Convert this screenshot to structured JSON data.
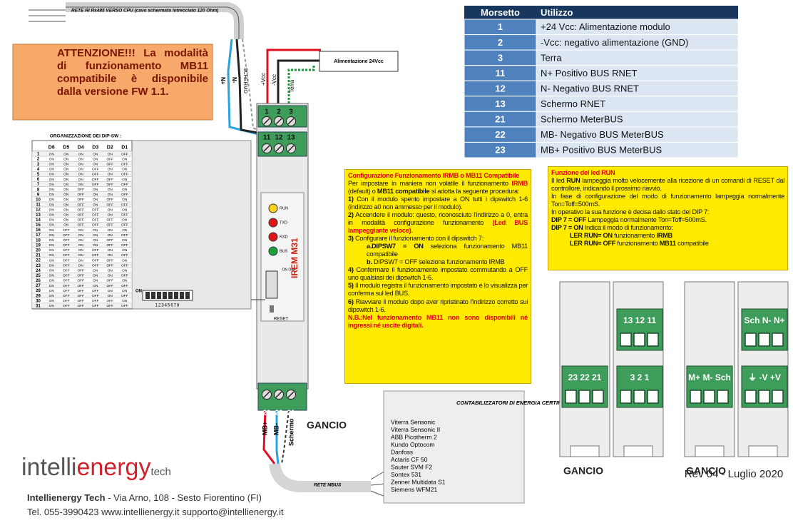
{
  "wires": {
    "rs485": "RETE RI Rs485 VERSO CPU (cavo schermato intrecciato 120 Ohm)",
    "power": "Alimentazione 24Vcc",
    "schermo": "SCHERMO",
    "n_plus": "N+",
    "n_minus": "N-",
    "vcc_plus": "+Vcc",
    "vcc_minus": "-Vcc",
    "terra": "Terra",
    "mbus": "RETE MBUS",
    "mb_plus": "MB+",
    "mb_minus": "MB-",
    "schermo2": "Schermo"
  },
  "attention": "ATTENZIONE!!! La modalità di funzionamento MB11 compatibile è disponibile dalla versione FW 1.1.",
  "device": {
    "top_terminals": [
      "1",
      "2",
      "3"
    ],
    "mid_terminals": [
      "11",
      "12",
      "13"
    ],
    "bottom_terminals": [
      "23",
      "22",
      "21"
    ],
    "leds": [
      "RUN",
      "TXD",
      "RXD",
      "BUS"
    ],
    "switch_label": "ON OFF",
    "reset": "RESET",
    "brand": "IREM M31",
    "hook": "GANCIO"
  },
  "dip": {
    "title": "ORGANIZZAZIONE DEI DIP-SW :",
    "columns": [
      "D6",
      "D5",
      "D4",
      "D3",
      "D2",
      "D1"
    ],
    "rows": [
      [
        "1",
        "ON",
        "ON",
        "ON",
        "ON",
        "ON",
        "OFF"
      ],
      [
        "2",
        "ON",
        "ON",
        "ON",
        "ON",
        "OFF",
        "ON"
      ],
      [
        "3",
        "ON",
        "ON",
        "ON",
        "ON",
        "OFF",
        "OFF"
      ],
      [
        "4",
        "ON",
        "ON",
        "ON",
        "OFF",
        "ON",
        "ON"
      ],
      [
        "5",
        "ON",
        "ON",
        "ON",
        "OFF",
        "ON",
        "OFF"
      ],
      [
        "6",
        "ON",
        "ON",
        "ON",
        "OFF",
        "OFF",
        "ON"
      ],
      [
        "7",
        "ON",
        "ON",
        "ON",
        "OFF",
        "OFF",
        "OFF"
      ],
      [
        "8",
        "ON",
        "ON",
        "OFF",
        "ON",
        "ON",
        "ON"
      ],
      [
        "9",
        "ON",
        "ON",
        "OFF",
        "ON",
        "ON",
        "OFF"
      ],
      [
        "10",
        "ON",
        "ON",
        "OFF",
        "ON",
        "OFF",
        "ON"
      ],
      [
        "11",
        "ON",
        "ON",
        "OFF",
        "ON",
        "OFF",
        "OFF"
      ],
      [
        "12",
        "ON",
        "ON",
        "OFF",
        "OFF",
        "ON",
        "ON"
      ],
      [
        "13",
        "ON",
        "ON",
        "OFF",
        "OFF",
        "ON",
        "OFF"
      ],
      [
        "14",
        "ON",
        "ON",
        "OFF",
        "OFF",
        "OFF",
        "ON"
      ],
      [
        "15",
        "ON",
        "ON",
        "OFF",
        "OFF",
        "OFF",
        "OFF"
      ],
      [
        "16",
        "ON",
        "OFF",
        "ON",
        "ON",
        "ON",
        "ON"
      ],
      [
        "17",
        "ON",
        "OFF",
        "ON",
        "ON",
        "ON",
        "OFF"
      ],
      [
        "18",
        "ON",
        "OFF",
        "ON",
        "ON",
        "OFF",
        "ON"
      ],
      [
        "19",
        "ON",
        "OFF",
        "ON",
        "ON",
        "OFF",
        "OFF"
      ],
      [
        "20",
        "ON",
        "OFF",
        "ON",
        "OFF",
        "ON",
        "ON"
      ],
      [
        "21",
        "ON",
        "OFF",
        "ON",
        "OFF",
        "ON",
        "OFF"
      ],
      [
        "22",
        "ON",
        "OFF",
        "ON",
        "OFF",
        "OFF",
        "ON"
      ],
      [
        "23",
        "ON",
        "OFF",
        "ON",
        "OFF",
        "OFF",
        "OFF"
      ],
      [
        "24",
        "ON",
        "OFF",
        "OFF",
        "ON",
        "ON",
        "ON"
      ],
      [
        "25",
        "ON",
        "OFF",
        "OFF",
        "ON",
        "ON",
        "OFF"
      ],
      [
        "26",
        "ON",
        "OFF",
        "OFF",
        "ON",
        "OFF",
        "ON"
      ],
      [
        "27",
        "ON",
        "OFF",
        "OFF",
        "ON",
        "OFF",
        "OFF"
      ],
      [
        "28",
        "ON",
        "OFF",
        "OFF",
        "OFF",
        "ON",
        "ON"
      ],
      [
        "29",
        "ON",
        "OFF",
        "OFF",
        "OFF",
        "ON",
        "OFF"
      ],
      [
        "30",
        "ON",
        "OFF",
        "OFF",
        "OFF",
        "OFF",
        "ON"
      ],
      [
        "31",
        "ON",
        "OFF",
        "OFF",
        "OFF",
        "OFF",
        "OFF"
      ]
    ],
    "switch_on": "ON",
    "switch_numbers": "12345678"
  },
  "terminals": {
    "header": [
      "Morsetto",
      "Utilizzo"
    ],
    "rows": [
      [
        "1",
        "+24 Vcc: Alimentazione modulo"
      ],
      [
        "2",
        "-Vcc: negativo alimentazione (GND)"
      ],
      [
        "3",
        "Terra"
      ],
      [
        "11",
        "N+ Positivo BUS RNET"
      ],
      [
        "12",
        "N- Negativo BUS RNET"
      ],
      [
        "13",
        "Schermo RNET"
      ],
      [
        "21",
        "Schermo MeterBUS"
      ],
      [
        "22",
        "MB- Negativo BUS MeterBUS"
      ],
      [
        "23",
        "MB+ Positivo BUS MeterBUS"
      ]
    ]
  },
  "config": [
    {
      "segments": [
        {
          "text": "Configurazione Funzionamento IRMB o MB11 Compatibile",
          "bold": true,
          "color": "#e0001a"
        }
      ]
    },
    {
      "segments": [
        {
          "text": "Per impostare in maniera non volatile il funzionamento "
        },
        {
          "text": "IRMB",
          "bold": true,
          "color": "#e0001a"
        },
        {
          "text": " (default) o "
        },
        {
          "text": "MB11 compatibile",
          "bold": true
        },
        {
          "text": " si adotta la seguente procedura:"
        }
      ]
    },
    {
      "segments": [
        {
          "text": "1)",
          "bold": true
        },
        {
          "text": " Con il modulo spento impostare a ON tutti i dipswitch 1-6 (indirizzo a0 non ammesso per il modulo)."
        }
      ]
    },
    {
      "segments": [
        {
          "text": "2)",
          "bold": true
        },
        {
          "text": " Accendere il modulo: questo, riconosciuto l'indirizzo a 0, entra in modalità configurazione funzionamento "
        },
        {
          "text": "(Led BUS lampeggiante veloce)",
          "bold": true,
          "color": "#e0001a"
        },
        {
          "text": "."
        }
      ]
    },
    {
      "segments": [
        {
          "text": "3)",
          "bold": true
        },
        {
          "text": " Configurare il funzionamento con il dipswitch 7:"
        }
      ]
    },
    {
      "indent": true,
      "segments": [
        {
          "text": "a.DIPSW7 = ON",
          "bold": true
        },
        {
          "text": " seleziona funzionamento MB11 compatibile"
        }
      ]
    },
    {
      "indent": true,
      "segments": [
        {
          "text": "b.",
          "bold": true
        },
        {
          "text": " DIPSW7 = OFF seleziona funzionamento IRMB"
        }
      ]
    },
    {
      "segments": [
        {
          "text": "4)",
          "bold": true
        },
        {
          "text": " Confermare il funzionamento impostato commutando a OFF uno qualsiasi dei dipswitch 1-6."
        }
      ]
    },
    {
      "segments": [
        {
          "text": "5)",
          "bold": true
        },
        {
          "text": " Il modulo registra il funzionamento impostato e lo visualizza per conferma sul led BUS."
        }
      ]
    },
    {
      "segments": [
        {
          "text": "6)",
          "bold": true
        },
        {
          "text": " Riavviare il modulo dopo aver ripristinato l'indirizzo corretto sui dipswitch 1-6."
        }
      ]
    },
    {
      "segments": [
        {
          "text": "N.B.:Nel funzionamento MB11 non sono disponibili né ingressi né uscite digitali.",
          "bold": true,
          "color": "#e0001a"
        }
      ]
    }
  ],
  "led_run": [
    {
      "segments": [
        {
          "text": "Funzione del led RUN",
          "bold": true,
          "color": "#e0001a"
        }
      ]
    },
    {
      "segments": [
        {
          "text": "Il led "
        },
        {
          "text": "RUN",
          "bold": true
        },
        {
          "text": " lampeggia molto velocemente alla ricezione di un comandi di RESET dal controllore, indicando il prossimo riavvio."
        }
      ]
    },
    {
      "segments": [
        {
          "text": "In fase di configurazione del modo di funzionamento lampeggia normalmente Ton=Toff=500mS."
        }
      ]
    },
    {
      "segments": [
        {
          "text": "In operativo la sua funzione è decisa dallo stato del DIP 7:"
        }
      ]
    },
    {
      "segments": [
        {
          "text": "DIP 7 = OFF",
          "bold": true
        },
        {
          "text": "   Lampeggia normalmente Ton=Toff=500mS."
        }
      ]
    },
    {
      "segments": [
        {
          "text": "DIP 7 = ON",
          "bold": true
        },
        {
          "text": "    Indica il modo di funzionamento:"
        }
      ]
    },
    {
      "indent": true,
      "segments": [
        {
          "text": "LER RUN= ON",
          "bold": true
        },
        {
          "text": " funzionamento "
        },
        {
          "text": "IRMB",
          "bold": true
        }
      ]
    },
    {
      "indent": true,
      "segments": [
        {
          "text": "LER RUN= OFF",
          "bold": true
        },
        {
          "text": " funzionamento "
        },
        {
          "text": "MB11",
          "bold": true
        },
        {
          "text": " compatibile"
        }
      ]
    }
  ],
  "meters": {
    "title": "CONTABILIZZATORI DI ENERGIA CERTIFICATI",
    "items": [
      "Viterra Sensonic",
      "Viterra Sensonic II",
      "ABB Picotherm 2",
      "Kundo Optocom",
      "Danfoss",
      "Actaris CF 50",
      "Sauter SVM F2",
      "Sontex 531",
      "Zenner Multidata S1",
      "Siemens WFM21"
    ]
  },
  "modules": {
    "labels": [
      "13 12 11",
      "23 22 21",
      "3 2 1",
      "Sch N- N+",
      "M+ M- Sch",
      "⏚ -V +V"
    ],
    "hooks": [
      "GANCIO",
      "GANCIO"
    ],
    "revision": "Rev 04 - Luglio 2020"
  },
  "footer": {
    "logo_a": "intelli",
    "logo_b": "energy",
    "logo_suffix": "tech",
    "company": "Intellienergy Tech",
    "address": " - Via Arno, 108 - Sesto Fiorentino (FI)",
    "contacts": "Tel. 055-3990423  www.intellienergy.it   supporto@intellienergy.it"
  }
}
